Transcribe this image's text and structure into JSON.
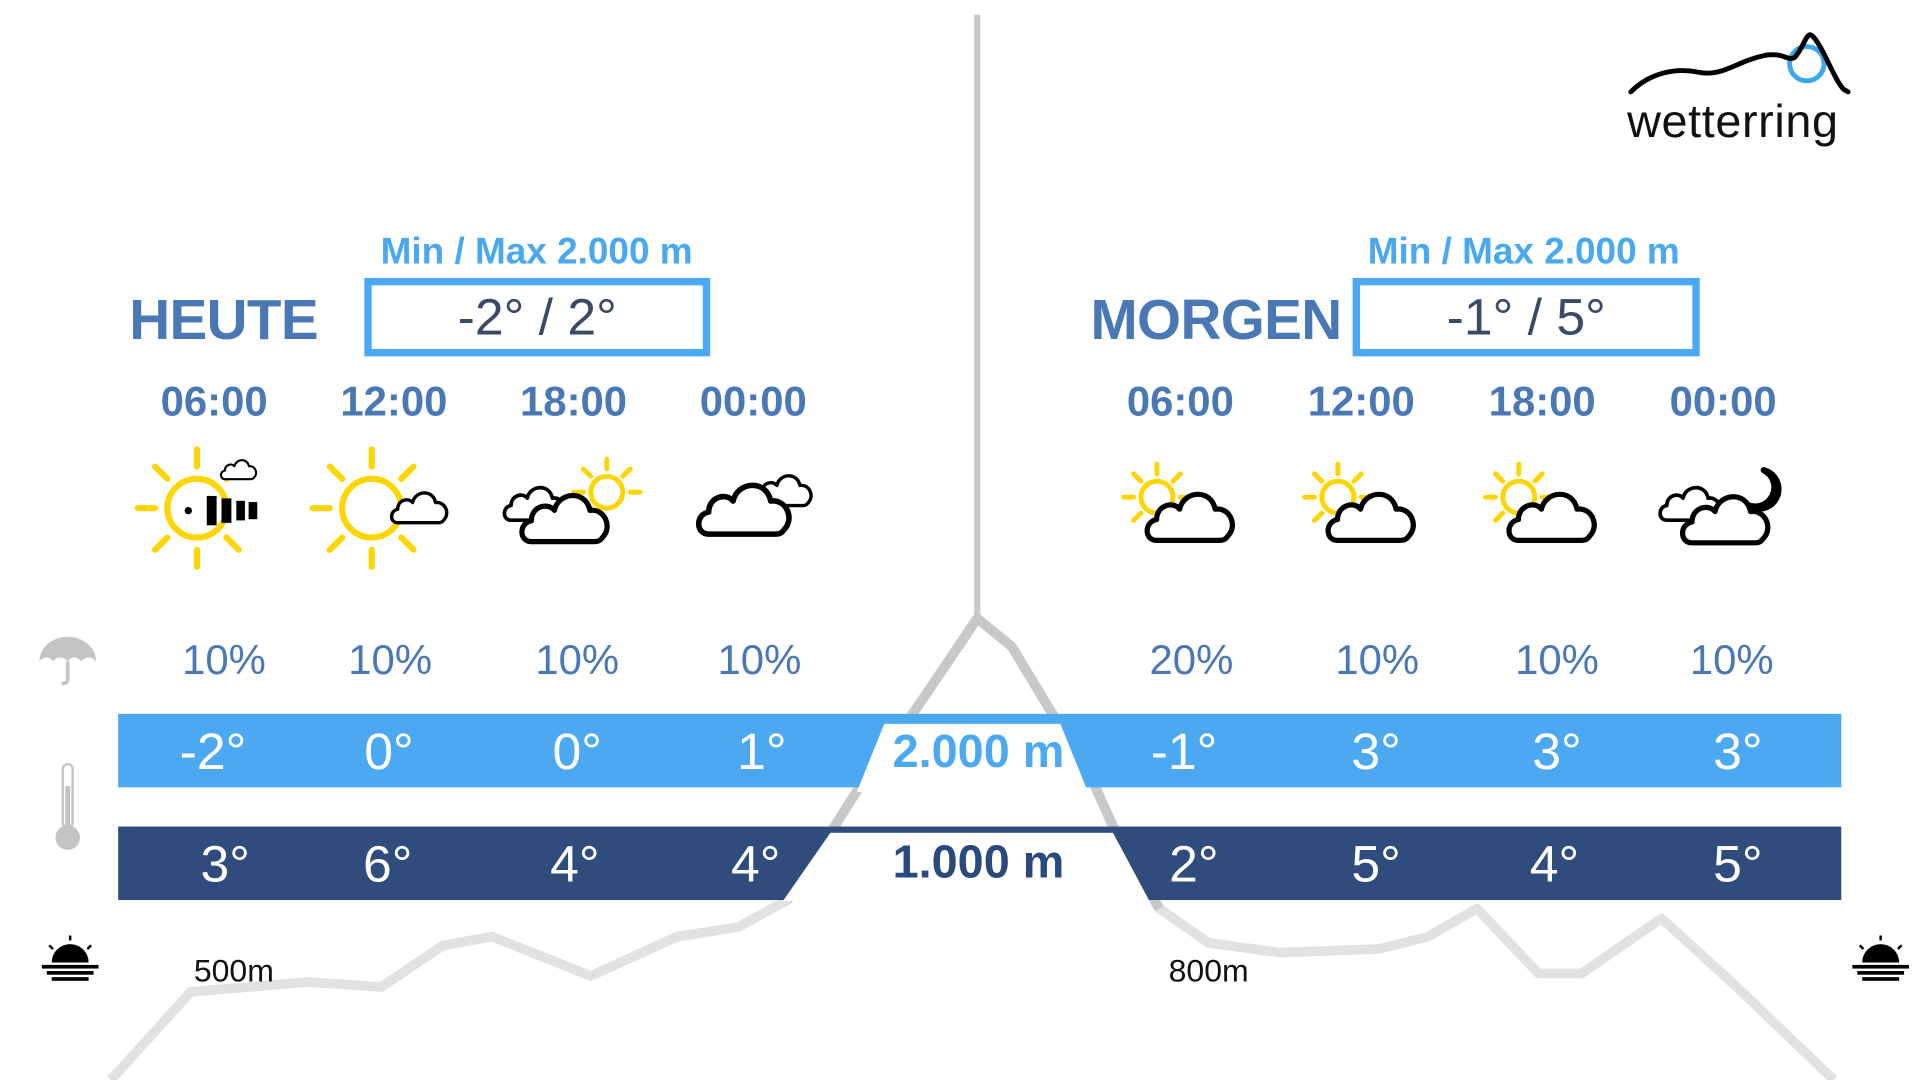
{
  "logo": {
    "text": "wetterring"
  },
  "colors": {
    "title": "#4a78b5",
    "accent": "#4aa8f0",
    "band_2000": "#4da8f2",
    "band_1000": "#2f4c7c",
    "mountain": "#c8c8c8"
  },
  "today": {
    "title": "HEUTE",
    "minmax_label": "Min / Max 2.000 m",
    "minmax_value": "-2° / 2°",
    "times": [
      "06:00",
      "12:00",
      "18:00",
      "00:00"
    ],
    "icons": [
      "sun-fog-cloud-icon",
      "sun-cloud-icon",
      "cloud-sun-icon",
      "cloudy-icon"
    ],
    "precip": [
      "10%",
      "10%",
      "10%",
      "10%"
    ],
    "temp_2000": [
      "-2°",
      "0°",
      "0°",
      "1°"
    ],
    "temp_1000": [
      "3°",
      "6°",
      "4°",
      "4°"
    ],
    "base_altitude": "500m"
  },
  "tomorrow": {
    "title": "MORGEN",
    "minmax_label": "Min / Max 2.000 m",
    "minmax_value": "-1° / 5°",
    "times": [
      "06:00",
      "12:00",
      "18:00",
      "00:00"
    ],
    "icons": [
      "sun-cloud-icon",
      "sun-cloud-icon",
      "sun-cloud-icon",
      "cloud-moon-icon"
    ],
    "precip": [
      "20%",
      "10%",
      "10%",
      "10%"
    ],
    "temp_2000": [
      "-1°",
      "3°",
      "3°",
      "3°"
    ],
    "temp_1000": [
      "2°",
      "5°",
      "4°",
      "5°"
    ],
    "base_altitude": "800m"
  },
  "altitudes": {
    "high": "2.000 m",
    "low": "1.000 m"
  }
}
